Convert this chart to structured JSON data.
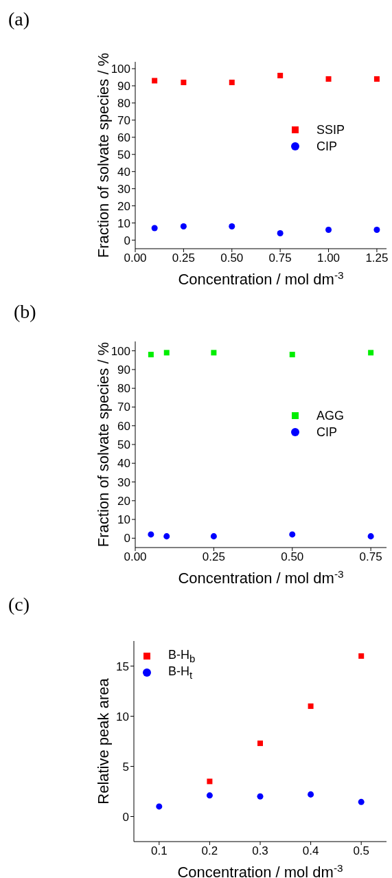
{
  "chart_data": [
    {
      "type": "scatter",
      "xlabel": "Concentration / mol dm$^{-3}$",
      "ylabel": "Fraction of solvate species / %",
      "annotations": [
        "(a)"
      ],
      "x": [
        0.1,
        0.25,
        0.5,
        0.75,
        1.0,
        1.25
      ],
      "xlim": [
        0,
        1.3
      ],
      "ylim": [
        -5,
        104
      ],
      "xticks": [
        {
          "value": 0,
          "label": "0.00"
        },
        0.25,
        {
          "value": 0.5,
          "label": "0.50"
        },
        0.75,
        {
          "value": 1,
          "label": "1.00"
        },
        1.25
      ],
      "yticks": [
        0,
        10,
        20,
        30,
        40,
        50,
        60,
        70,
        80,
        90,
        100
      ],
      "legend": "right",
      "grid": false,
      "series": [
        {
          "name": "SSIP",
          "color": "#ff0000",
          "marker": "square",
          "values": [
            93,
            92,
            92,
            96,
            94,
            94
          ]
        },
        {
          "name": "CIP",
          "color": "#0000ff",
          "marker": "circle",
          "values": [
            7,
            8,
            8,
            4,
            6,
            6
          ]
        }
      ]
    },
    {
      "type": "scatter",
      "xlabel": "Concentration / mol dm$^{-3}$",
      "ylabel": "Fraction of solvate species / %",
      "annotations": [
        "(b)"
      ],
      "x": [
        0.05,
        0.1,
        0.25,
        0.5,
        0.75
      ],
      "xlim": [
        0,
        0.8
      ],
      "ylim": [
        -5,
        105
      ],
      "xticks": [
        {
          "value": 0,
          "label": "0.00"
        },
        0.25,
        {
          "value": 0.5,
          "label": "0.50"
        },
        0.75
      ],
      "yticks": [
        0,
        10,
        20,
        30,
        40,
        50,
        60,
        70,
        80,
        90,
        100
      ],
      "legend": "right",
      "grid": false,
      "series": [
        {
          "name": "AGG",
          "color": "#00ee00",
          "marker": "square",
          "values": [
            98,
            99,
            99,
            98,
            99
          ]
        },
        {
          "name": "CIP",
          "color": "#0000ff",
          "marker": "circle",
          "values": [
            2,
            1,
            1,
            2,
            1
          ]
        }
      ]
    },
    {
      "type": "scatter",
      "xlabel": "Concentration / mol dm$^{-3}$",
      "ylabel": "Relative peak area",
      "annotations": [
        "(c)"
      ],
      "x": [
        0.1,
        0.2,
        0.3,
        0.4,
        0.5
      ],
      "xlim": [
        0.05,
        0.55
      ],
      "ylim": [
        -2.5,
        17.5
      ],
      "xticks": [
        0.1,
        0.2,
        0.3,
        0.4,
        0.5
      ],
      "yticks": [
        0,
        5,
        10,
        15
      ],
      "legend": "top left",
      "grid": false,
      "series": [
        {
          "name": "B-H$_{b}$",
          "color": "#ff0000",
          "marker": "square",
          "values": [
            null,
            3.5,
            7.3,
            11,
            16
          ]
        },
        {
          "name": "B-H$_{t}$",
          "color": "#0000ff",
          "marker": "circle",
          "values": [
            1.0,
            2.1,
            2.0,
            2.2,
            1.45
          ]
        }
      ]
    }
  ]
}
